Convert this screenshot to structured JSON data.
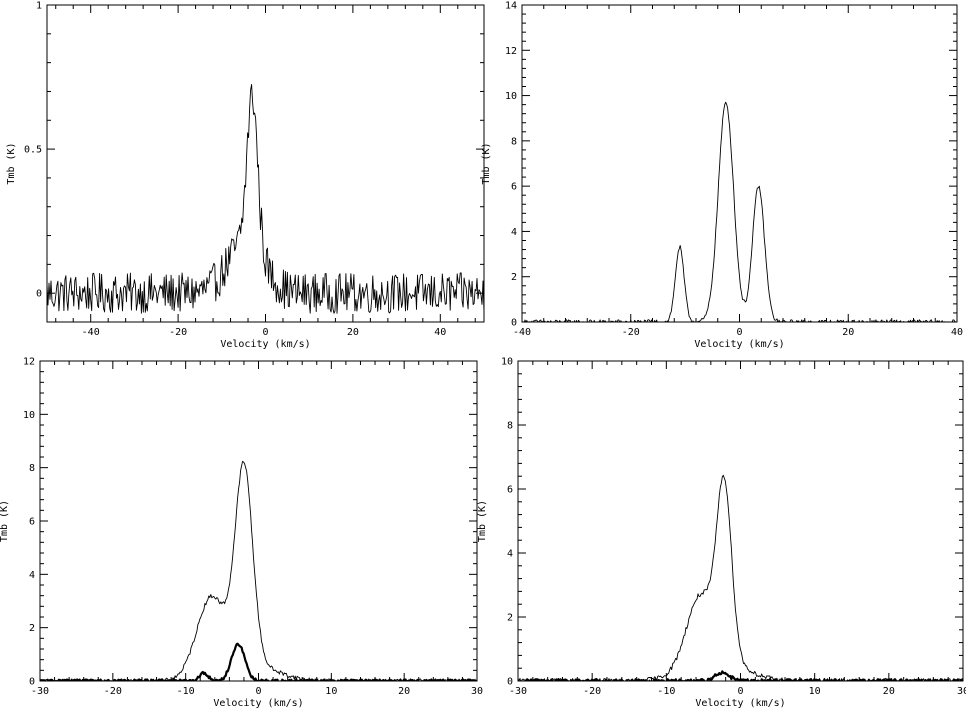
{
  "chart_data": [
    {
      "type": "line",
      "xlabel": "Velocity (km/s)",
      "ylabel": "Tmb (K)",
      "xlim": [
        -50,
        50
      ],
      "ylim": [
        -0.1,
        1.0
      ],
      "xticks": [
        -40,
        -20,
        0,
        20,
        40
      ],
      "yticks": [
        0,
        0.5,
        1
      ],
      "yticklabels": [
        "0",
        "0.5",
        "1"
      ],
      "noise": 0.07,
      "series": [
        {
          "style": "thin",
          "components": [
            {
              "amp": 0.18,
              "center": -4.5,
              "sigma": 4.0
            },
            {
              "amp": 0.52,
              "center": -3.0,
              "sigma": 1.2
            }
          ]
        }
      ]
    },
    {
      "type": "line",
      "xlabel": "Velocity (km/s)",
      "ylabel": "Tmb (K)",
      "xlim": [
        -40,
        40
      ],
      "ylim": [
        0,
        14
      ],
      "xticks": [
        -40,
        -20,
        0,
        20,
        40
      ],
      "yticks": [
        0,
        2,
        4,
        6,
        8,
        10,
        12,
        14
      ],
      "noise": 0.1,
      "series": [
        {
          "style": "thin",
          "components": [
            {
              "amp": 3.3,
              "center": -11.0,
              "sigma": 0.8
            },
            {
              "amp": 9.7,
              "center": -2.5,
              "sigma": 1.4
            },
            {
              "amp": 6.0,
              "center": 3.5,
              "sigma": 1.1
            }
          ]
        }
      ]
    },
    {
      "type": "line",
      "xlabel": "Velocity (km/s)",
      "ylabel": "Tmb (K)",
      "xlim": [
        -30,
        30
      ],
      "ylim": [
        0,
        12
      ],
      "xticks": [
        -30,
        -20,
        -10,
        0,
        10,
        20,
        30
      ],
      "yticks": [
        0,
        2,
        4,
        6,
        8,
        10,
        12
      ],
      "noise": 0.08,
      "series": [
        {
          "style": "thin",
          "components": [
            {
              "amp": 3.0,
              "center": -6.5,
              "sigma": 2.0
            },
            {
              "amp": 7.4,
              "center": -2.0,
              "sigma": 1.2
            },
            {
              "amp": 0.6,
              "center": -1.0,
              "sigma": 3.5
            }
          ]
        },
        {
          "style": "thick",
          "components": [
            {
              "amp": 1.4,
              "center": -2.8,
              "sigma": 0.9
            },
            {
              "amp": 0.3,
              "center": -7.5,
              "sigma": 0.6
            }
          ]
        }
      ]
    },
    {
      "type": "line",
      "xlabel": "Velocity (km/s)",
      "ylabel": "Tmb (K)",
      "xlim": [
        -30,
        30
      ],
      "ylim": [
        0,
        10
      ],
      "xticks": [
        -30,
        -20,
        -10,
        0,
        10,
        20,
        30
      ],
      "yticks": [
        0,
        2,
        4,
        6,
        8,
        10
      ],
      "noise": 0.08,
      "series": [
        {
          "style": "thin",
          "components": [
            {
              "amp": 2.0,
              "center": -5.5,
              "sigma": 1.8
            },
            {
              "amp": 5.3,
              "center": -2.2,
              "sigma": 1.0
            },
            {
              "amp": 0.8,
              "center": -3.5,
              "sigma": 3.5
            }
          ]
        },
        {
          "style": "thick",
          "components": [
            {
              "amp": 0.25,
              "center": -2.5,
              "sigma": 1.0
            }
          ]
        }
      ]
    }
  ]
}
